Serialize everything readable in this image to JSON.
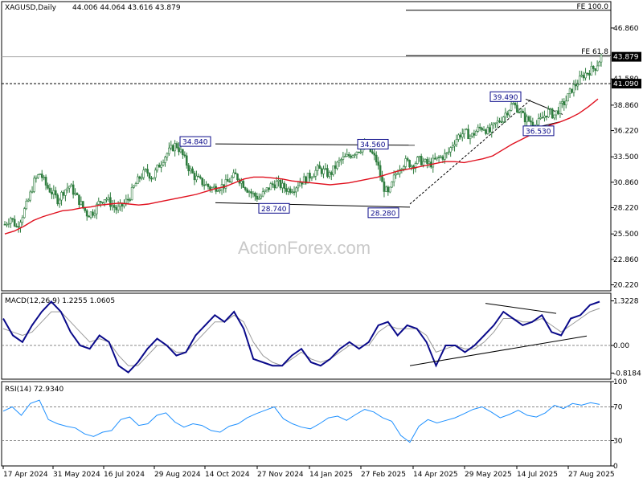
{
  "header": {
    "symbol": "XAGUSD,Daily",
    "ohlc": "44.006 44.064 43.616 43.879"
  },
  "watermark": "ActionForex.com",
  "colors": {
    "candles": "#2f7d3f",
    "ma": "#e0101e",
    "macd_line": "#0a0a8a",
    "signal_line": "#9a9a9a",
    "rsi_line": "#1e90ff",
    "label_border": "#0a0a8a"
  },
  "chart_data": [
    {
      "type": "candlestick",
      "panel": "price",
      "title": "XAGUSD,Daily 44.006 44.064 43.616 43.879",
      "y_ticks": [
        "46.860",
        "41.580",
        "38.860",
        "36.220",
        "33.500",
        "30.860",
        "28.220",
        "25.500",
        "22.860",
        "20.220"
      ],
      "y_tick_values": [
        46.86,
        41.58,
        38.86,
        36.22,
        33.5,
        30.86,
        28.22,
        25.5,
        22.86,
        20.22
      ],
      "ylim": [
        19.6,
        49.6
      ],
      "x_ticks": [
        "17 Apr 2024",
        "31 May 2024",
        "16 Jul 2024",
        "29 Aug 2024",
        "14 Oct 2024",
        "27 Nov 2024",
        "14 Jan 2025",
        "27 Feb 2025",
        "14 Apr 2025",
        "29 May 2025",
        "14 Jul 2025",
        "27 Aug 2025"
      ],
      "close_series": [
        26.5,
        27.2,
        26.2,
        27.5,
        29.0,
        31.0,
        31.8,
        30.5,
        29.8,
        29.0,
        30.0,
        30.5,
        29.5,
        28.5,
        27.5,
        27.8,
        28.8,
        29.3,
        28.6,
        28.0,
        28.5,
        29.2,
        30.5,
        31.5,
        32.0,
        31.3,
        32.5,
        33.5,
        34.2,
        34.8,
        33.8,
        32.5,
        31.5,
        31.0,
        30.6,
        30.2,
        30.4,
        30.5,
        31.0,
        31.6,
        31.0,
        30.2,
        29.6,
        29.2,
        29.8,
        30.5,
        30.8,
        30.4,
        30.1,
        30.3,
        30.9,
        31.2,
        31.7,
        32.2,
        32.0,
        31.6,
        32.5,
        33.2,
        33.5,
        33.9,
        34.3,
        34.56,
        34.0,
        33.0,
        30.5,
        29.5,
        31.5,
        32.6,
        33.0,
        32.6,
        33.2,
        32.9,
        32.7,
        33.2,
        33.5,
        33.8,
        35.0,
        35.8,
        36.0,
        35.6,
        36.3,
        36.6,
        36.0,
        36.8,
        37.4,
        38.2,
        39.0,
        38.4,
        37.5,
        37.2,
        36.8,
        37.5,
        38.2,
        37.8,
        38.6,
        39.3,
        40.5,
        41.2,
        42.0,
        42.4,
        42.8,
        43.879
      ],
      "ma_series": [
        25.5,
        25.8,
        26.3,
        26.9,
        27.3,
        27.6,
        27.9,
        28.0,
        28.2,
        28.3,
        28.5,
        28.6,
        28.7,
        28.6,
        28.5,
        28.6,
        28.8,
        29.0,
        29.2,
        29.4,
        29.6,
        29.9,
        30.2,
        30.4,
        30.8,
        31.2,
        31.4,
        31.4,
        31.3,
        31.2,
        31.0,
        30.9,
        30.8,
        30.7,
        30.6,
        30.7,
        30.8,
        31.0,
        31.2,
        31.4,
        31.7,
        32.0,
        32.2,
        32.4,
        32.6,
        32.8,
        33.0,
        33.0,
        32.9,
        33.1,
        33.3,
        33.6,
        34.2,
        34.8,
        35.3,
        35.8,
        36.3,
        36.8,
        37.1,
        37.5,
        38.0,
        38.7,
        39.5
      ],
      "annotations": [
        {
          "label": "34.840",
          "value": 34.84
        },
        {
          "label": "34.560",
          "value": 34.56
        },
        {
          "label": "28.740",
          "value": 28.74
        },
        {
          "label": "28.280",
          "value": 28.28
        },
        {
          "label": "39.490",
          "value": 39.49
        },
        {
          "label": "36.530",
          "value": 36.53
        }
      ],
      "levels": [
        {
          "label": "FE 100.0",
          "value": 48.7
        },
        {
          "label": "FE 61.8",
          "value": 44.0
        }
      ],
      "price_tags": [
        {
          "label": "43.879",
          "value": 43.879,
          "style": "current"
        },
        {
          "label": "41.090",
          "value": 41.09,
          "style": "dashed"
        }
      ]
    },
    {
      "type": "line",
      "panel": "macd",
      "title": "MACD(12,26,9) 1.2255 1.0605",
      "y_ticks": [
        "1.3228",
        "0.00",
        "-0.8184"
      ],
      "y_tick_values": [
        1.3228,
        0.0,
        -0.8184
      ],
      "ylim": [
        -1.0,
        1.55
      ],
      "series": [
        {
          "values": [
            0.8,
            0.3,
            0.1,
            0.6,
            1.0,
            1.3,
            1.0,
            0.4,
            0.0,
            -0.1,
            0.3,
            0.1,
            -0.6,
            -0.8,
            -0.5,
            -0.1,
            0.2,
            0.0,
            -0.3,
            -0.2,
            0.3,
            0.6,
            0.9,
            0.7,
            1.0,
            0.5,
            -0.4,
            -0.5,
            -0.6,
            -0.6,
            -0.3,
            -0.1,
            -0.5,
            -0.6,
            -0.4,
            -0.1,
            0.1,
            -0.1,
            0.1,
            0.6,
            0.7,
            0.3,
            0.6,
            0.5,
            0.1,
            -0.6,
            0.0,
            0.0,
            -0.2,
            0.0,
            0.3,
            0.6,
            1.0,
            0.8,
            0.6,
            0.7,
            0.9,
            0.4,
            0.3,
            0.8,
            0.9,
            1.2,
            1.3
          ]
        },
        {
          "values": [
            0.5,
            0.4,
            0.3,
            0.4,
            0.7,
            1.0,
            1.0,
            0.7,
            0.4,
            0.1,
            0.2,
            0.1,
            -0.3,
            -0.6,
            -0.6,
            -0.3,
            0.0,
            0.0,
            -0.2,
            -0.2,
            0.1,
            0.4,
            0.7,
            0.7,
            0.9,
            0.7,
            0.1,
            -0.3,
            -0.5,
            -0.6,
            -0.4,
            -0.2,
            -0.4,
            -0.5,
            -0.4,
            -0.2,
            0.0,
            0.0,
            0.0,
            0.4,
            0.6,
            0.5,
            0.5,
            0.5,
            0.3,
            -0.2,
            -0.1,
            0.0,
            -0.1,
            -0.1,
            0.1,
            0.4,
            0.8,
            0.8,
            0.7,
            0.7,
            0.8,
            0.6,
            0.4,
            0.6,
            0.8,
            1.0,
            1.1
          ]
        }
      ]
    },
    {
      "type": "line",
      "panel": "rsi",
      "title": "RSI(14) 72.9340",
      "y_ticks": [
        "100",
        "70",
        "30",
        "0"
      ],
      "y_tick_values": [
        100,
        70,
        30,
        0
      ],
      "ylim": [
        0,
        100
      ],
      "series": [
        {
          "values": [
            65,
            70,
            60,
            74,
            78,
            55,
            50,
            47,
            45,
            38,
            35,
            40,
            42,
            55,
            58,
            48,
            50,
            60,
            63,
            52,
            46,
            50,
            48,
            42,
            40,
            47,
            50,
            57,
            62,
            66,
            70,
            56,
            50,
            46,
            44,
            50,
            57,
            59,
            54,
            61,
            67,
            64,
            57,
            53,
            36,
            28,
            47,
            55,
            51,
            54,
            57,
            62,
            67,
            70,
            64,
            57,
            61,
            66,
            60,
            58,
            63,
            72,
            68,
            74,
            72,
            75,
            73
          ]
        }
      ]
    }
  ]
}
